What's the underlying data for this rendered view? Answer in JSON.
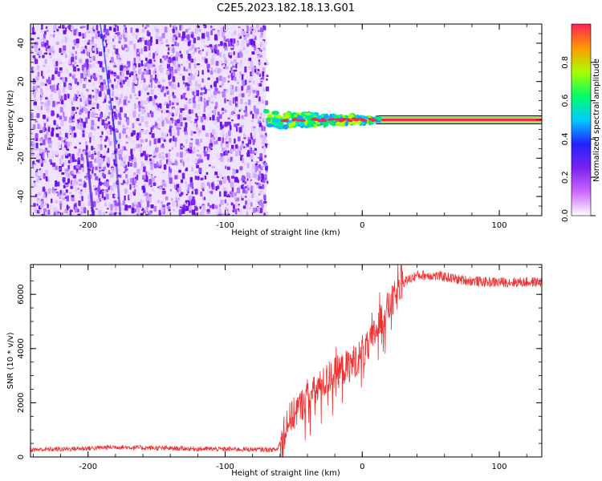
{
  "title": "C2E5.2023.182.18.13.G01",
  "colors": {
    "snr_line": "#ee3333",
    "spectro_dots": "#7a22ee",
    "axis": "#000000"
  },
  "colorbar": {
    "label": "Normalized spectral amplitude",
    "ticks": [
      "0.0",
      "0.2",
      "0.4",
      "0.6",
      "0.8"
    ],
    "tick_values": [
      0.0,
      0.2,
      0.4,
      0.6,
      0.8
    ],
    "range": [
      0,
      1
    ],
    "colormap": [
      "#ffffff",
      "#cc66ff",
      "#7a22ee",
      "#2222ff",
      "#00ccff",
      "#00ff66",
      "#aaff00",
      "#ff9900",
      "#ff2255"
    ]
  },
  "chart_data": [
    {
      "type": "heatmap",
      "xlabel": "Height of straight line (km)",
      "ylabel": "Frequency (Hz)",
      "xlim": [
        -242,
        131
      ],
      "ylim": [
        -50,
        50
      ],
      "xticks": [
        "-200",
        "-100",
        "0",
        "100"
      ],
      "xtick_values": [
        -200,
        -100,
        0,
        100
      ],
      "yticks": [
        "-40",
        "-20",
        "0",
        "20",
        "40"
      ],
      "ytick_values": [
        -40,
        -20,
        0,
        20,
        40
      ],
      "noise_region_x": [
        -242,
        -70
      ],
      "signal_line_freq": 0,
      "signal_onset_x": -70,
      "tone_line_x": [
        10,
        131
      ]
    },
    {
      "type": "line",
      "xlabel": "Height of straight line (km)",
      "ylabel": "SNR (10 * v/v)",
      "xlim": [
        -242,
        131
      ],
      "ylim": [
        0,
        7100
      ],
      "xticks": [
        "-200",
        "-100",
        "0",
        "100"
      ],
      "xtick_values": [
        -200,
        -100,
        0,
        100
      ],
      "yticks": [
        "0",
        "2000",
        "4000",
        "6000"
      ],
      "ytick_values": [
        0,
        2000,
        4000,
        6000
      ],
      "series": [
        {
          "x": [
            -242,
            -220,
            -200,
            -180,
            -160,
            -140,
            -120,
            -100,
            -80,
            -62,
            -58,
            -55,
            -50,
            -45,
            -40,
            -35,
            -30,
            -25,
            -20,
            -15,
            -10,
            -5,
            0,
            5,
            10,
            15,
            20,
            25,
            30,
            40,
            50,
            60,
            70,
            80,
            90,
            100,
            110,
            120,
            131
          ],
          "values": [
            250,
            270,
            300,
            350,
            320,
            300,
            280,
            270,
            260,
            250,
            800,
            1400,
            1700,
            2000,
            2300,
            2500,
            2750,
            3000,
            3200,
            3350,
            3500,
            3700,
            3900,
            4200,
            4800,
            5300,
            5700,
            6100,
            6450,
            6700,
            6700,
            6650,
            6550,
            6500,
            6450,
            6450,
            6450,
            6450,
            6450
          ]
        }
      ]
    }
  ]
}
